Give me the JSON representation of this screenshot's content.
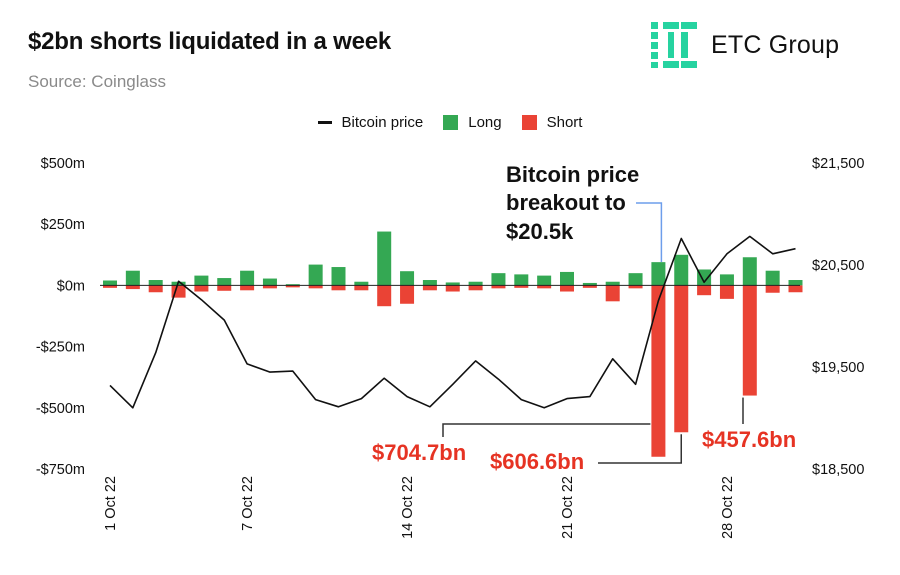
{
  "header": {
    "title": "$2bn shorts liquidated in a week",
    "subtitle": "Source: Coinglass",
    "brand": "ETC Group"
  },
  "colors": {
    "long": "#34a853",
    "short": "#ea4335",
    "price": "#111111",
    "annotation_red": "#e63323",
    "brand": "#26d3a0",
    "pointer_blue": "#6d9eeb"
  },
  "chart_data": {
    "type": "bar",
    "title": "$2bn shorts liquidated in a week",
    "legend": {
      "position": "top",
      "items": [
        "Bitcoin price",
        "Long",
        "Short"
      ]
    },
    "left_axis": {
      "min": -750,
      "max": 500,
      "ticks": [
        "$500m",
        "$250m",
        "$0m",
        "-$250m",
        "-$500m",
        "-$750m"
      ],
      "tick_values": [
        500,
        250,
        0,
        -250,
        -500,
        -750
      ]
    },
    "right_axis": {
      "min": 18500,
      "max": 21500,
      "ticks": [
        "$21,500",
        "$20,500",
        "$19,500",
        "$18,500"
      ],
      "tick_values": [
        21500,
        20500,
        19500,
        18500
      ]
    },
    "x_tick_labels": [
      {
        "label": "1 Oct 22",
        "index": 0
      },
      {
        "label": "7 Oct 22",
        "index": 6
      },
      {
        "label": "14 Oct 22",
        "index": 13
      },
      {
        "label": "21 Oct 22",
        "index": 20
      },
      {
        "label": "28 Oct 22",
        "index": 27
      }
    ],
    "series": [
      {
        "name": "Long",
        "unit": "$m",
        "values": [
          20,
          60,
          22,
          15,
          40,
          30,
          60,
          28,
          5,
          85,
          75,
          15,
          220,
          58,
          22,
          12,
          15,
          50,
          45,
          40,
          55,
          10,
          15,
          50,
          95,
          125,
          65,
          45,
          115,
          60,
          22
        ]
      },
      {
        "name": "Short",
        "unit": "$m",
        "values": [
          -10,
          -15,
          -28,
          -50,
          -25,
          -22,
          -20,
          -12,
          -8,
          -12,
          -20,
          -20,
          -85,
          -75,
          -20,
          -25,
          -20,
          -12,
          -10,
          -12,
          -25,
          -10,
          -65,
          -12,
          -700,
          -600,
          -40,
          -55,
          -450,
          -30,
          -28
        ]
      },
      {
        "name": "Bitcoin price",
        "unit": "$",
        "values": [
          19320,
          19100,
          19640,
          20340,
          20160,
          19960,
          19530,
          19450,
          19460,
          19180,
          19110,
          19190,
          19390,
          19210,
          19110,
          19330,
          19560,
          19380,
          19180,
          19100,
          19190,
          19210,
          19580,
          19330,
          20150,
          20760,
          20330,
          20610,
          20780,
          20610,
          20660
        ]
      }
    ],
    "annotations": {
      "breakout_line1": "Bitcoin price",
      "breakout_line2": "breakout to",
      "breakout_line3": "$20.5k",
      "label_a": "$704.7bn",
      "label_b": "$606.6bn",
      "label_c": "$457.6bn"
    }
  }
}
